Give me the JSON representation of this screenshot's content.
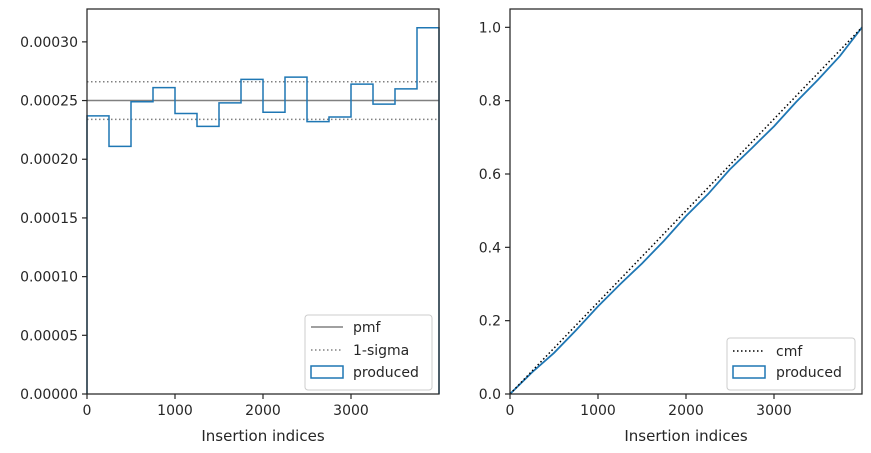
{
  "colors": {
    "produced": "#1f77b4",
    "pmf": "#808080",
    "sigma": "#808080",
    "cmf": "#000000",
    "axes": "#262626"
  },
  "chart_data": [
    {
      "type": "line",
      "xlabel": "Insertion indices",
      "ylabel": "",
      "xlim": [
        0,
        4000
      ],
      "ylim": [
        0,
        0.000328
      ],
      "xticks": [
        0,
        1000,
        2000,
        3000
      ],
      "xtick_labels": [
        "0",
        "1000",
        "2000",
        "3000"
      ],
      "yticks": [
        0,
        5e-05,
        0.0001,
        0.00015,
        0.0002,
        0.00025,
        0.0003
      ],
      "ytick_labels": [
        "0.00000",
        "0.00005",
        "0.00010",
        "0.00015",
        "0.00020",
        "0.00025",
        "0.00030"
      ],
      "pmf": 0.00025,
      "sigma_band": [
        0.000234,
        0.000266
      ],
      "bin_edges": [
        0,
        250,
        500,
        750,
        1000,
        1250,
        1500,
        1750,
        2000,
        2250,
        2500,
        2750,
        3000,
        3250,
        3500,
        3750,
        4000
      ],
      "produced": [
        0.000237,
        0.000211,
        0.000249,
        0.000261,
        0.000239,
        0.000228,
        0.000248,
        0.000268,
        0.00024,
        0.00027,
        0.000232,
        0.000236,
        0.000264,
        0.000247,
        0.00026,
        0.000312
      ],
      "legend": {
        "position": "lower-right",
        "entries": [
          "pmf",
          "1-sigma",
          "produced"
        ]
      }
    },
    {
      "type": "line",
      "xlabel": "Insertion indices",
      "ylabel": "",
      "xlim": [
        0,
        4000
      ],
      "ylim": [
        0,
        1.05
      ],
      "xticks": [
        0,
        1000,
        2000,
        3000
      ],
      "xtick_labels": [
        "0",
        "1000",
        "2000",
        "3000"
      ],
      "yticks": [
        0,
        0.2,
        0.4,
        0.6,
        0.8,
        1.0
      ],
      "ytick_labels": [
        "0.0",
        "0.2",
        "0.4",
        "0.6",
        "0.8",
        "1.0"
      ],
      "cmf": {
        "x": [
          0,
          4000
        ],
        "y": [
          0,
          1.0
        ]
      },
      "produced": {
        "x": [
          0,
          250,
          500,
          750,
          1000,
          1250,
          1500,
          1750,
          2000,
          2250,
          2500,
          2750,
          3000,
          3250,
          3500,
          3750,
          4000
        ],
        "y": [
          0,
          0.059,
          0.112,
          0.174,
          0.239,
          0.299,
          0.356,
          0.418,
          0.485,
          0.545,
          0.613,
          0.671,
          0.73,
          0.796,
          0.857,
          0.922,
          1.0
        ]
      },
      "legend": {
        "position": "lower-right",
        "entries": [
          "cmf",
          "produced"
        ]
      }
    }
  ]
}
